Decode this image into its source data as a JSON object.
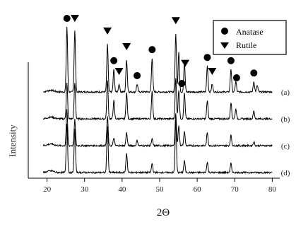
{
  "chart_data": {
    "type": "line",
    "title": "",
    "xlabel": "2Θ",
    "ylabel": "Intensity",
    "xlim": [
      15,
      82
    ],
    "xticks": [
      20,
      30,
      40,
      50,
      60,
      70,
      80
    ],
    "grid": false,
    "legend_position": "top-right",
    "legend": [
      {
        "label": "Anatase",
        "marker": "circle"
      },
      {
        "label": "Rutile",
        "marker": "triangle-down"
      }
    ],
    "series": [
      {
        "name": "(a)",
        "offset": 3,
        "peaks": [
          [
            25.3,
            1.0
          ],
          [
            27.4,
            0.95
          ],
          [
            36.1,
            0.74
          ],
          [
            37.8,
            0.35
          ],
          [
            39.2,
            0.12
          ],
          [
            41.2,
            0.5
          ],
          [
            44.0,
            0.12
          ],
          [
            48.0,
            0.52
          ],
          [
            54.3,
            0.9
          ],
          [
            55.1,
            0.62
          ],
          [
            56.6,
            0.45
          ],
          [
            62.7,
            0.4
          ],
          [
            64.0,
            0.12
          ],
          [
            69.0,
            0.35
          ],
          [
            70.3,
            0.16
          ],
          [
            75.1,
            0.16
          ],
          [
            76.0,
            0.1
          ]
        ]
      },
      {
        "name": "(b)",
        "offset": 2,
        "peaks": [
          [
            25.3,
            0.55
          ],
          [
            27.4,
            0.55
          ],
          [
            36.1,
            0.6
          ],
          [
            37.8,
            0.28
          ],
          [
            41.2,
            0.4
          ],
          [
            48.0,
            0.42
          ],
          [
            54.3,
            0.62
          ],
          [
            55.1,
            0.45
          ],
          [
            56.6,
            0.4
          ],
          [
            62.7,
            0.28
          ],
          [
            69.0,
            0.25
          ],
          [
            70.3,
            0.15
          ],
          [
            75.1,
            0.12
          ]
        ]
      },
      {
        "name": "(c)",
        "offset": 1,
        "peaks": [
          [
            25.3,
            0.55
          ],
          [
            27.4,
            0.4
          ],
          [
            36.1,
            0.45
          ],
          [
            37.8,
            0.12
          ],
          [
            41.2,
            0.2
          ],
          [
            44.0,
            0.08
          ],
          [
            48.0,
            0.1
          ],
          [
            54.3,
            0.5
          ],
          [
            55.1,
            0.3
          ],
          [
            56.6,
            0.22
          ],
          [
            62.7,
            0.2
          ],
          [
            69.0,
            0.16
          ],
          [
            75.1,
            0.06
          ]
        ]
      },
      {
        "name": "(d)",
        "offset": 0,
        "peaks": [
          [
            25.3,
            0.75
          ],
          [
            27.4,
            0.68
          ],
          [
            36.1,
            0.72
          ],
          [
            41.2,
            0.3
          ],
          [
            48.0,
            0.14
          ],
          [
            54.3,
            0.8
          ],
          [
            56.6,
            0.18
          ],
          [
            62.7,
            0.16
          ],
          [
            69.0,
            0.14
          ]
        ]
      }
    ],
    "anatase_markers_x": [
      25.3,
      37.8,
      44.0,
      48.0,
      55.9,
      62.7,
      69.0,
      70.5,
      75.1
    ],
    "rutile_markers_x": [
      27.4,
      36.1,
      39.2,
      41.2,
      54.3,
      56.8,
      64.0
    ]
  }
}
